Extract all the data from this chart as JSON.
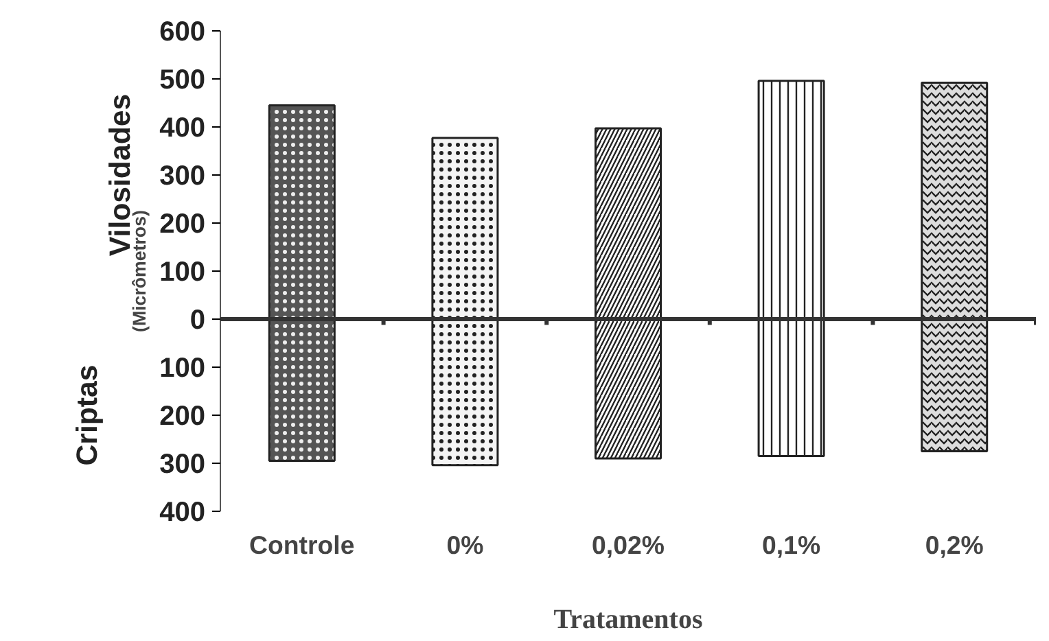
{
  "chart_data": {
    "type": "bar",
    "xlabel": "Tratamentos",
    "ylabel": "(Micrômetros)",
    "categories": [
      "Controle",
      "0%",
      "0,02%",
      "0,1%",
      "0,2%"
    ],
    "series": [
      {
        "colors": [
          "#555555",
          "#f4f4f4",
          "#ffffff",
          "#ffffff",
          "#dddddd"
        ],
        "values": [
          445,
          377,
          397,
          496,
          492
        ]
      },
      {
        "colors": [
          "#555555",
          "#f4f4f4",
          "#ffffff",
          "#ffffff",
          "#dddddd"
        ],
        "values": [
          -295,
          -304,
          -290,
          -285,
          -275
        ]
      }
    ],
    "ylim": [
      -400,
      600
    ],
    "yticks": [
      {
        "value": -400,
        "label": "400"
      },
      {
        "value": -300,
        "label": "300"
      },
      {
        "value": -200,
        "label": "200"
      },
      {
        "value": -100,
        "label": "100"
      },
      0,
      100,
      200,
      300,
      400,
      500,
      600
    ],
    "stacked": true,
    "annotations": [
      "Vilosidades",
      "Criptas"
    ]
  }
}
